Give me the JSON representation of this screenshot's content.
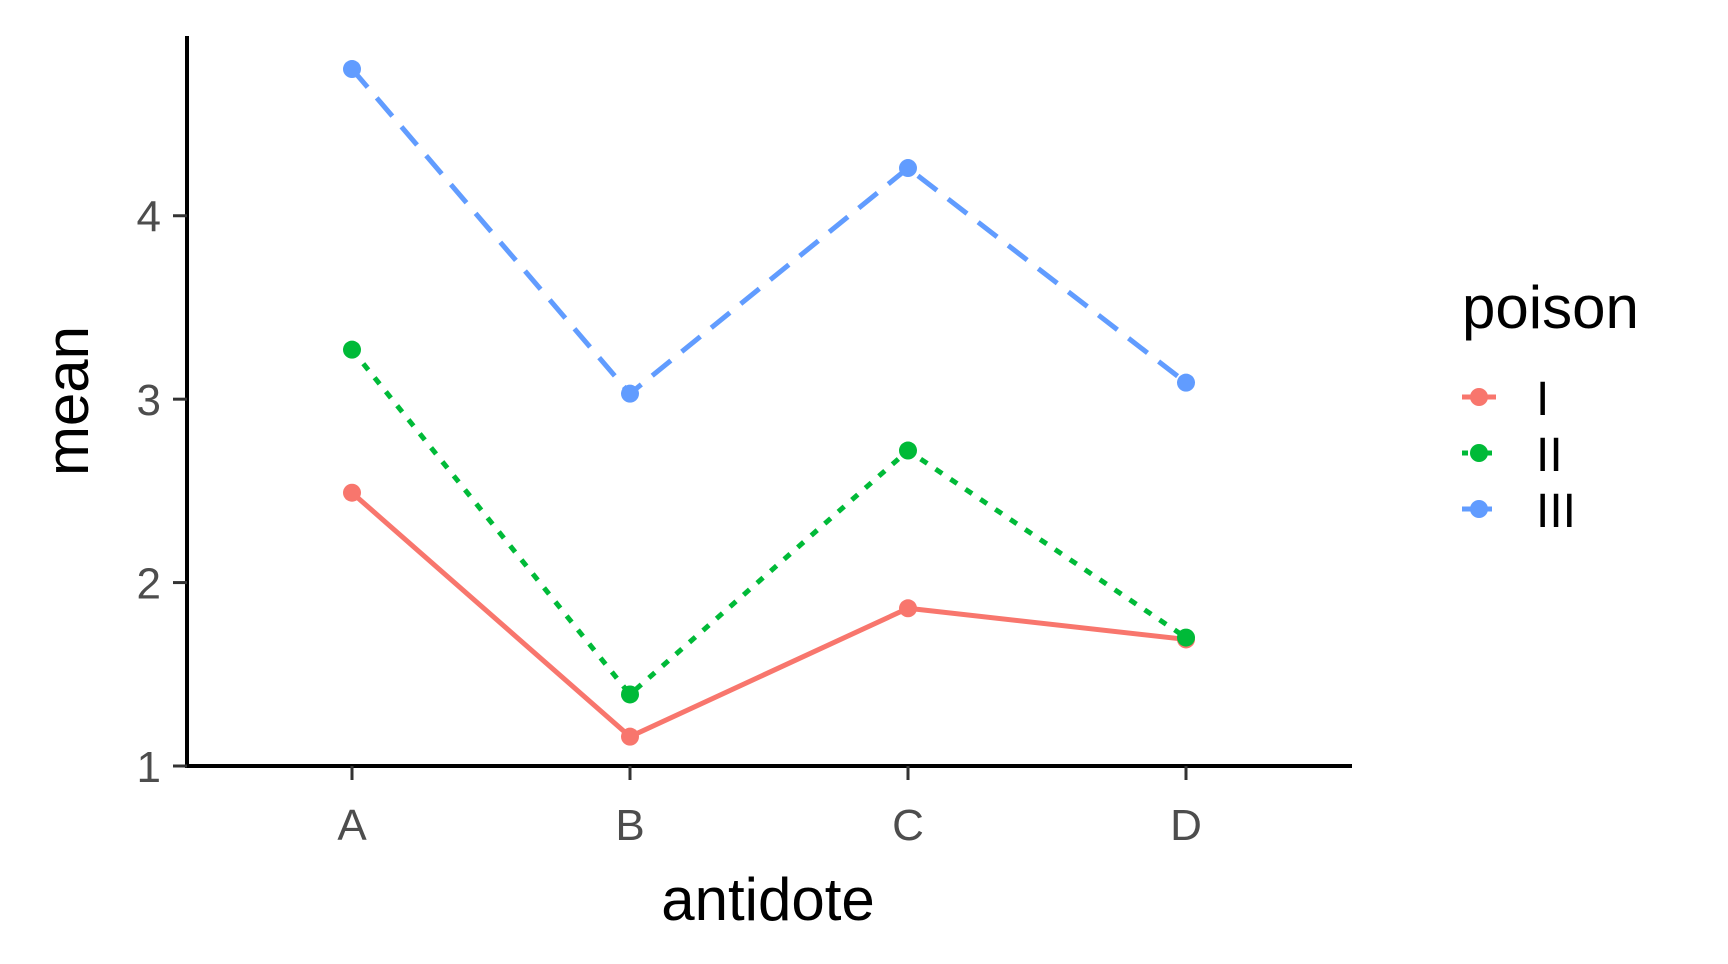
{
  "chart_data": {
    "type": "line",
    "xlabel": "antidote",
    "ylabel": "mean",
    "categories": [
      "A",
      "B",
      "C",
      "D"
    ],
    "yticks": [
      1,
      2,
      3,
      4
    ],
    "ylim": [
      1,
      4.98
    ],
    "grid": false,
    "legend": {
      "title": "poison",
      "position": "right"
    },
    "series": [
      {
        "name": "I",
        "values": [
          2.49,
          1.16,
          1.86,
          1.69
        ],
        "color": "#F8766D",
        "line_style": "solid"
      },
      {
        "name": "II",
        "values": [
          3.27,
          1.39,
          2.72,
          1.7
        ],
        "color": "#00BA38",
        "line_style": "dotted"
      },
      {
        "name": "III",
        "values": [
          4.8,
          3.03,
          4.26,
          3.09
        ],
        "color": "#619CFF",
        "line_style": "dashed"
      }
    ]
  }
}
